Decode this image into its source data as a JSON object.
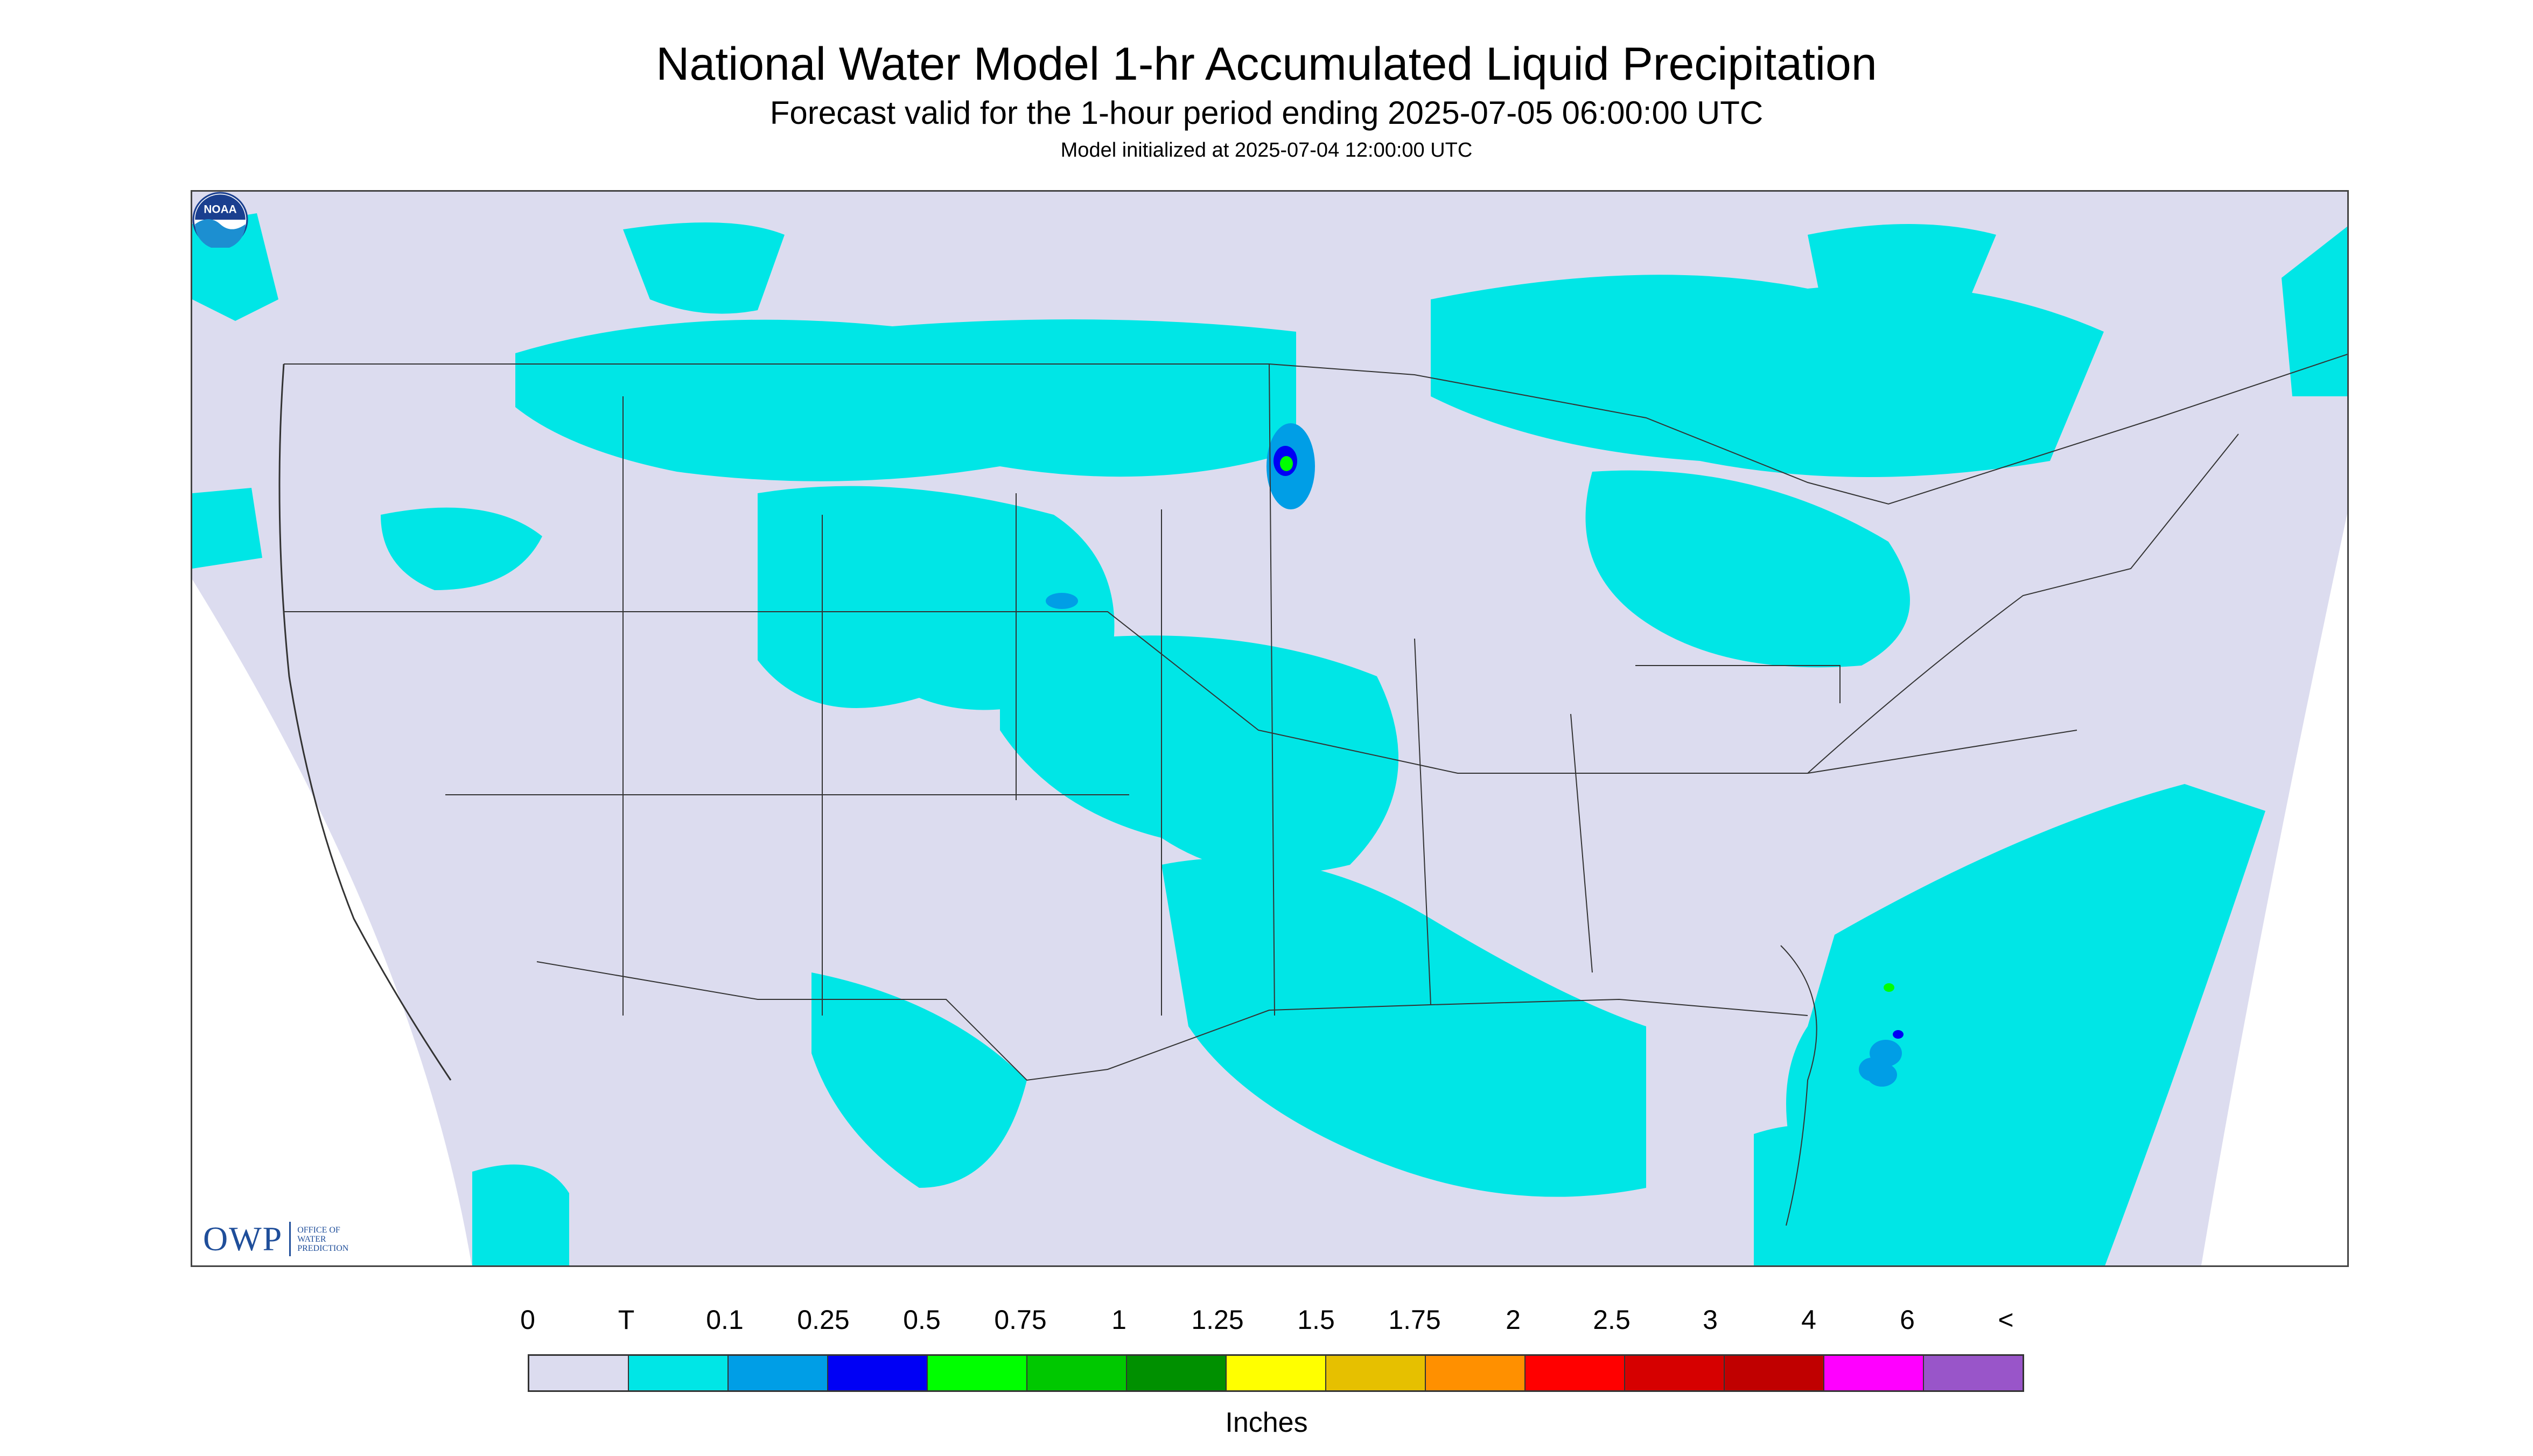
{
  "header": {
    "title": "National Water Model 1-hr Accumulated Liquid Precipitation",
    "subtitle": "Forecast valid for the 1-hour period ending 2025-07-05 06:00:00 UTC",
    "init": "Model initialized at 2025-07-04 12:00:00 UTC"
  },
  "logos": {
    "owp_big": "OWP",
    "owp_small": [
      "OFFICE OF",
      "WATER",
      "PREDICTION"
    ],
    "noaa": "NOAA"
  },
  "legend": {
    "labels": [
      "0",
      "T",
      "0.1",
      "0.25",
      "0.5",
      "0.75",
      "1",
      "1.25",
      "1.5",
      "1.75",
      "2",
      "2.5",
      "3",
      "4",
      "6",
      "<"
    ],
    "colors": [
      "#dcdcef",
      "#00e6e6",
      "#009ee6",
      "#0000f5",
      "#00ff00",
      "#00c800",
      "#009000",
      "#ffff00",
      "#e6c000",
      "#ff9000",
      "#ff0000",
      "#d60000",
      "#c00000",
      "#ff00ff",
      "#9955c9"
    ],
    "units": "Inches"
  },
  "colors": {
    "background_fill": "#dcdcef",
    "trace": "#00e6e6",
    "light": "#009ee6",
    "blue": "#0000f5",
    "green": "#00ff00"
  }
}
